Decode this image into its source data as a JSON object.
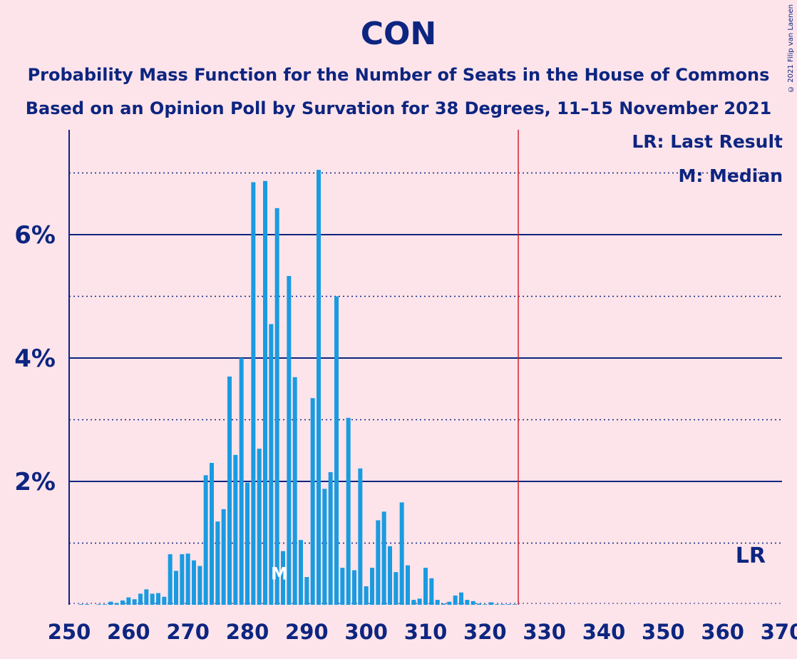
{
  "title": "CON",
  "subtitle1": "Probability Mass Function for the Number of Seats in the House of Commons",
  "subtitle2": "Based on an Opinion Poll by Survation for 38 Degrees, 11–15 November 2021",
  "copyright": "© 2021 Filip van Laenen",
  "legend": {
    "lr": "LR: Last Result",
    "m": "M: Median"
  },
  "colors": {
    "bar": "#1a9be0",
    "axis": "#0d2580",
    "lastResult": "#d0202e",
    "background": "#fde4ea"
  },
  "chart_data": {
    "type": "bar",
    "xlim": [
      250,
      370
    ],
    "ylim": [
      0,
      7.5
    ],
    "x_ticks": [
      250,
      260,
      270,
      280,
      290,
      300,
      310,
      320,
      330,
      340,
      350,
      360,
      370
    ],
    "y_ticks": [
      {
        "value": 2,
        "label": "2%"
      },
      {
        "value": 4,
        "label": "4%"
      },
      {
        "value": 6,
        "label": "6%"
      }
    ],
    "median_seat": 286,
    "median_label": "M",
    "last_result_seat": 326,
    "last_result_label": "LR",
    "seats": [
      250,
      251,
      252,
      253,
      254,
      255,
      256,
      257,
      258,
      259,
      260,
      261,
      262,
      263,
      264,
      265,
      266,
      267,
      268,
      269,
      270,
      271,
      272,
      273,
      274,
      275,
      276,
      277,
      278,
      279,
      280,
      281,
      282,
      283,
      284,
      285,
      286,
      287,
      288,
      289,
      290,
      291,
      292,
      293,
      294,
      295,
      296,
      297,
      298,
      299,
      300,
      301,
      302,
      303,
      304,
      305,
      306,
      307,
      308,
      309,
      310,
      311,
      312,
      313,
      314,
      315,
      316,
      317,
      318,
      319,
      320,
      321,
      322,
      323,
      324,
      325,
      326,
      327,
      328,
      329,
      330,
      331,
      332,
      333,
      334,
      335,
      336,
      337,
      338,
      339,
      340,
      341,
      342,
      343,
      344,
      345,
      346,
      347,
      348,
      349,
      350,
      351,
      352,
      353,
      354,
      355,
      356,
      357,
      358,
      359,
      360,
      361,
      362,
      363,
      364,
      365,
      366,
      367,
      368,
      369
    ],
    "values": [
      0,
      0,
      0.01,
      0.01,
      0,
      0.01,
      0.01,
      0.05,
      0.03,
      0.07,
      0.12,
      0.09,
      0.18,
      0.25,
      0.18,
      0.19,
      0.13,
      0.82,
      0.55,
      0.82,
      0.83,
      0.72,
      0.63,
      2.1,
      2.3,
      1.35,
      1.55,
      3.7,
      2.43,
      4.0,
      1.98,
      6.85,
      2.53,
      6.87,
      4.55,
      6.43,
      0.87,
      5.33,
      3.69,
      1.05,
      0.45,
      3.35,
      7.05,
      1.88,
      2.15,
      5.0,
      0.6,
      3.03,
      0.56,
      2.21,
      0.3,
      0.6,
      1.37,
      1.51,
      0.95,
      0.53,
      1.66,
      0.64,
      0.08,
      0.1,
      0.6,
      0.43,
      0.08,
      0.02,
      0.05,
      0.15,
      0.2,
      0.08,
      0.06,
      0.02,
      0.01,
      0.04,
      0.01,
      0.01,
      0.01,
      0.01,
      0,
      0,
      0,
      0,
      0,
      0,
      0,
      0,
      0,
      0,
      0,
      0,
      0,
      0,
      0,
      0,
      0,
      0,
      0,
      0,
      0,
      0,
      0,
      0,
      0,
      0,
      0,
      0,
      0,
      0,
      0,
      0,
      0,
      0,
      0,
      0,
      0,
      0,
      0,
      0,
      0,
      0,
      0,
      0
    ]
  }
}
